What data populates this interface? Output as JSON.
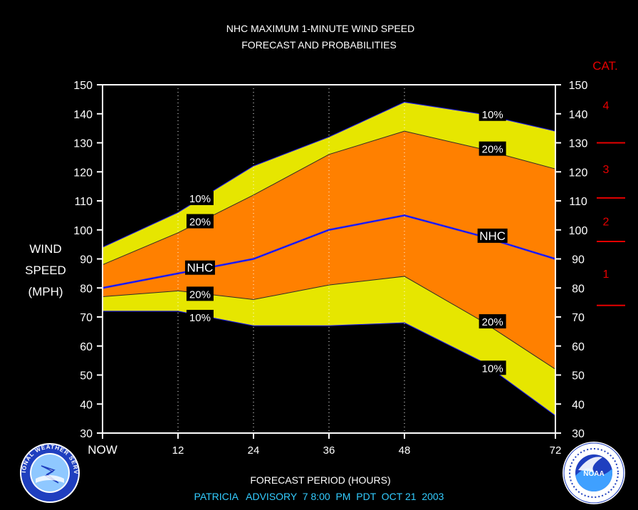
{
  "chart_data": {
    "type": "area",
    "title": "NHC MAXIMUM 1-MINUTE WIND SPEED",
    "subtitle": "FORECAST AND PROBABILITIES",
    "xlabel": "FORECAST PERIOD (HOURS)",
    "ylabel": [
      "WIND",
      "SPEED",
      "(MPH)"
    ],
    "footer": "PATRICIA   ADVISORY  7 8:00  PM  PDT  OCT 21  2003",
    "x_ticks": [
      {
        "x": 0,
        "label": "NOW"
      },
      {
        "x": 12,
        "label": "12"
      },
      {
        "x": 24,
        "label": "24"
      },
      {
        "x": 36,
        "label": "36"
      },
      {
        "x": 48,
        "label": "48"
      },
      {
        "x": 72,
        "label": "72"
      }
    ],
    "xlim": [
      0,
      72
    ],
    "ylim": [
      30,
      150
    ],
    "y_ticks": [
      30,
      40,
      50,
      60,
      70,
      80,
      90,
      100,
      110,
      120,
      130,
      140,
      150
    ],
    "vertical_grid_x": [
      12,
      24,
      36,
      48
    ],
    "x": [
      0,
      12,
      24,
      36,
      48,
      60,
      72
    ],
    "series": [
      {
        "name": "10%",
        "role": "upper-10",
        "values": [
          94,
          106,
          122,
          132,
          144,
          140,
          134
        ]
      },
      {
        "name": "20%",
        "role": "upper-20",
        "values": [
          88,
          99,
          112,
          126,
          134,
          128,
          121
        ]
      },
      {
        "name": "NHC",
        "role": "forecast",
        "values": [
          80,
          85,
          90,
          100,
          105,
          98,
          90
        ]
      },
      {
        "name": "20%",
        "role": "lower-20",
        "values": [
          77,
          79,
          76,
          81,
          84,
          69,
          52
        ]
      },
      {
        "name": "10%",
        "role": "lower-10",
        "values": [
          72,
          72,
          67,
          67,
          68,
          55,
          36
        ]
      }
    ],
    "labels": [
      {
        "text": "10%",
        "x": 15.5,
        "y": 111
      },
      {
        "text": "20%",
        "x": 15.5,
        "y": 103
      },
      {
        "text": "NHC",
        "x": 15.5,
        "y": 87
      },
      {
        "text": "20%",
        "x": 15.5,
        "y": 78
      },
      {
        "text": "10%",
        "x": 15.5,
        "y": 70
      },
      {
        "text": "10%",
        "x": 62,
        "y": 140
      },
      {
        "text": "20%",
        "x": 62,
        "y": 128
      },
      {
        "text": "NHC",
        "x": 62,
        "y": 98
      },
      {
        "text": "20%",
        "x": 62,
        "y": 68.5
      },
      {
        "text": "10%",
        "x": 62,
        "y": 52.5
      }
    ],
    "category_title": "CAT.",
    "categories": [
      {
        "label": "4",
        "y": 143
      },
      {
        "label": "3",
        "y": 121
      },
      {
        "label": "2",
        "y": 103
      },
      {
        "label": "1",
        "y": 85
      }
    ],
    "category_thresholds": [
      130,
      111,
      96,
      74
    ],
    "colors": {
      "background": "#000000",
      "outer_band": "#e6e600",
      "inner_band": "#ff8000",
      "forecast_line": "#1a1aff",
      "band_edge": "#2b2b2b",
      "axis_text": "#ffffff",
      "category_text": "#e60000",
      "footer_text": "#33ccff"
    }
  },
  "logos": {
    "left": {
      "name": "nws-logo",
      "text": "NATIONAL WEATHER SERVICE"
    },
    "right": {
      "name": "noaa-logo",
      "text": "NOAA"
    }
  }
}
